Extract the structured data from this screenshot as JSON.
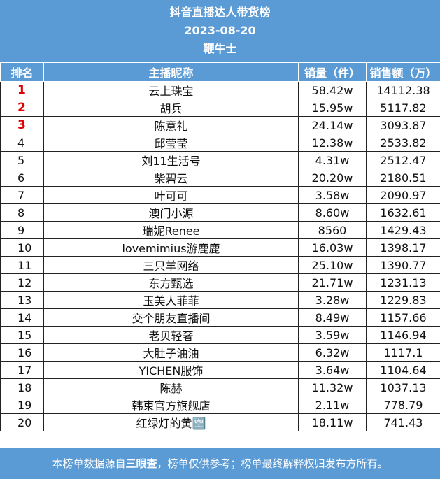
{
  "header": {
    "title": "抖音直播达人带货榜",
    "date": "2023-08-20",
    "subtitle": "鞭牛士"
  },
  "table": {
    "columns": [
      "排名",
      "主播昵称",
      "销量（件）",
      "销售额（万）"
    ],
    "rows": [
      {
        "rank": "1",
        "name": "云上珠宝",
        "sales": "58.42w",
        "revenue": "14112.38"
      },
      {
        "rank": "2",
        "name": "胡兵",
        "sales": "15.95w",
        "revenue": "5117.82"
      },
      {
        "rank": "3",
        "name": "陈意礼",
        "sales": "24.14w",
        "revenue": "3093.87"
      },
      {
        "rank": "4",
        "name": "邱莹莹",
        "sales": "12.38w",
        "revenue": "2533.82"
      },
      {
        "rank": "5",
        "name": "刘11生活号",
        "sales": "4.31w",
        "revenue": "2512.47"
      },
      {
        "rank": "6",
        "name": "柴碧云",
        "sales": "20.20w",
        "revenue": "2180.51"
      },
      {
        "rank": "7",
        "name": "叶可可",
        "sales": "3.58w",
        "revenue": "2090.97"
      },
      {
        "rank": "8",
        "name": "澳门小源",
        "sales": "8.60w",
        "revenue": "1632.61"
      },
      {
        "rank": "9",
        "name": "瑞妮Renee",
        "sales": "8560",
        "revenue": "1429.43"
      },
      {
        "rank": "10",
        "name": "lovemimius游鹿鹿",
        "sales": "16.03w",
        "revenue": "1398.17"
      },
      {
        "rank": "11",
        "name": "三只羊网络",
        "sales": "25.10w",
        "revenue": "1390.77"
      },
      {
        "rank": "12",
        "name": "东方甄选",
        "sales": "21.71w",
        "revenue": "1231.13"
      },
      {
        "rank": "13",
        "name": "玉美人菲菲",
        "sales": "3.28w",
        "revenue": "1229.83"
      },
      {
        "rank": "14",
        "name": "交个朋友直播间",
        "sales": "8.49w",
        "revenue": "1157.66"
      },
      {
        "rank": "15",
        "name": "老贝轻奢",
        "sales": "3.59w",
        "revenue": "1146.94"
      },
      {
        "rank": "16",
        "name": "大肚子油油",
        "sales": "6.32w",
        "revenue": "1117.1"
      },
      {
        "rank": "17",
        "name": "YICHEN服饰",
        "sales": "3.64w",
        "revenue": "1104.64"
      },
      {
        "rank": "18",
        "name": "陈赫",
        "sales": "11.32w",
        "revenue": "1037.13"
      },
      {
        "rank": "19",
        "name": "韩束官方旗舰店",
        "sales": "2.11w",
        "revenue": "778.79"
      },
      {
        "rank": "20",
        "name": "红绿灯的黄🈳",
        "sales": "18.11w",
        "revenue": "741.43"
      }
    ]
  },
  "footer": {
    "text_before": "本榜单数据源自",
    "source": "三眼查",
    "text_after": "，榜单仅供参考；榜单最终解释权归发布方所有。"
  },
  "colors": {
    "header_bg": "#5b9bd5",
    "header_text": "#ffffff",
    "top3_rank": "#e00000",
    "grid": "#222222"
  }
}
